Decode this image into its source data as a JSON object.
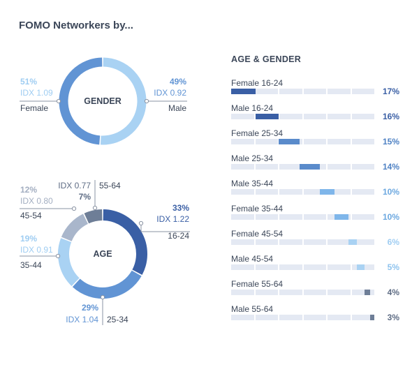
{
  "title": "FOMO Networkers by...",
  "colors": {
    "dark_text": "#3b4658",
    "grey_text": "#5b6678",
    "leader": "#8a93a3",
    "track": "#e4e9f3"
  },
  "chart_data": [
    {
      "type": "pie",
      "title": "GENDER",
      "series": [
        {
          "name": "Female",
          "value": 51,
          "value_label": "51%",
          "idx_label": "IDX 1.09",
          "color": "#a9d2f3",
          "text_color": "#9fcdf2"
        },
        {
          "name": "Male",
          "value": 49,
          "value_label": "49%",
          "idx_label": "IDX 0.92",
          "color": "#6194d4",
          "text_color": "#6194d4"
        }
      ]
    },
    {
      "type": "pie",
      "title": "AGE",
      "series": [
        {
          "name": "16-24",
          "value": 33,
          "value_label": "33%",
          "idx_label": "IDX 1.22",
          "color": "#3a5fa5",
          "text_color": "#3a5fa5"
        },
        {
          "name": "25-34",
          "value": 29,
          "value_label": "29%",
          "idx_label": "IDX 1.04",
          "color": "#6194d4",
          "text_color": "#6194d4"
        },
        {
          "name": "35-44",
          "value": 19,
          "value_label": "19%",
          "idx_label": "IDX 0.91",
          "color": "#a9d2f3",
          "text_color": "#9fcdf2"
        },
        {
          "name": "45-54",
          "value": 12,
          "value_label": "12%",
          "idx_label": "IDX 0.80",
          "color": "#a9b6cb",
          "text_color": "#a3aec1"
        },
        {
          "name": "55-64",
          "value": 7,
          "value_label": "7%",
          "idx_label": "IDX 0.77",
          "color": "#6e7e97",
          "text_color": "#5e6c84"
        }
      ]
    },
    {
      "type": "bar",
      "title": "AGE & GENDER",
      "xlim": [
        0,
        100
      ],
      "categories": [
        "Female 16-24",
        "Male 16-24",
        "Female 25-34",
        "Male 25-34",
        "Male 35-44",
        "Female 35-44",
        "Female 45-54",
        "Male 45-54",
        "Female 55-64",
        "Male 55-64"
      ],
      "values": [
        17,
        16,
        15,
        14,
        10,
        10,
        6,
        5,
        4,
        3
      ],
      "value_labels": [
        "17%",
        "16%",
        "15%",
        "14%",
        "10%",
        "10%",
        "6%",
        "5%",
        "4%",
        "3%"
      ],
      "colors": [
        "#3a5fa5",
        "#3a5fa5",
        "#5a8bcb",
        "#5a8bcb",
        "#7fb6ea",
        "#7fb6ea",
        "#a9d2f3",
        "#a9d2f3",
        "#6e7e97",
        "#6e7e97"
      ],
      "text_colors": [
        "#3a5fa5",
        "#3a5fa5",
        "#4f82c4",
        "#4f82c4",
        "#6ca8e0",
        "#6ca8e0",
        "#9fcdf2",
        "#8ec3ee",
        "#5e6c84",
        "#5e6c84"
      ]
    }
  ]
}
